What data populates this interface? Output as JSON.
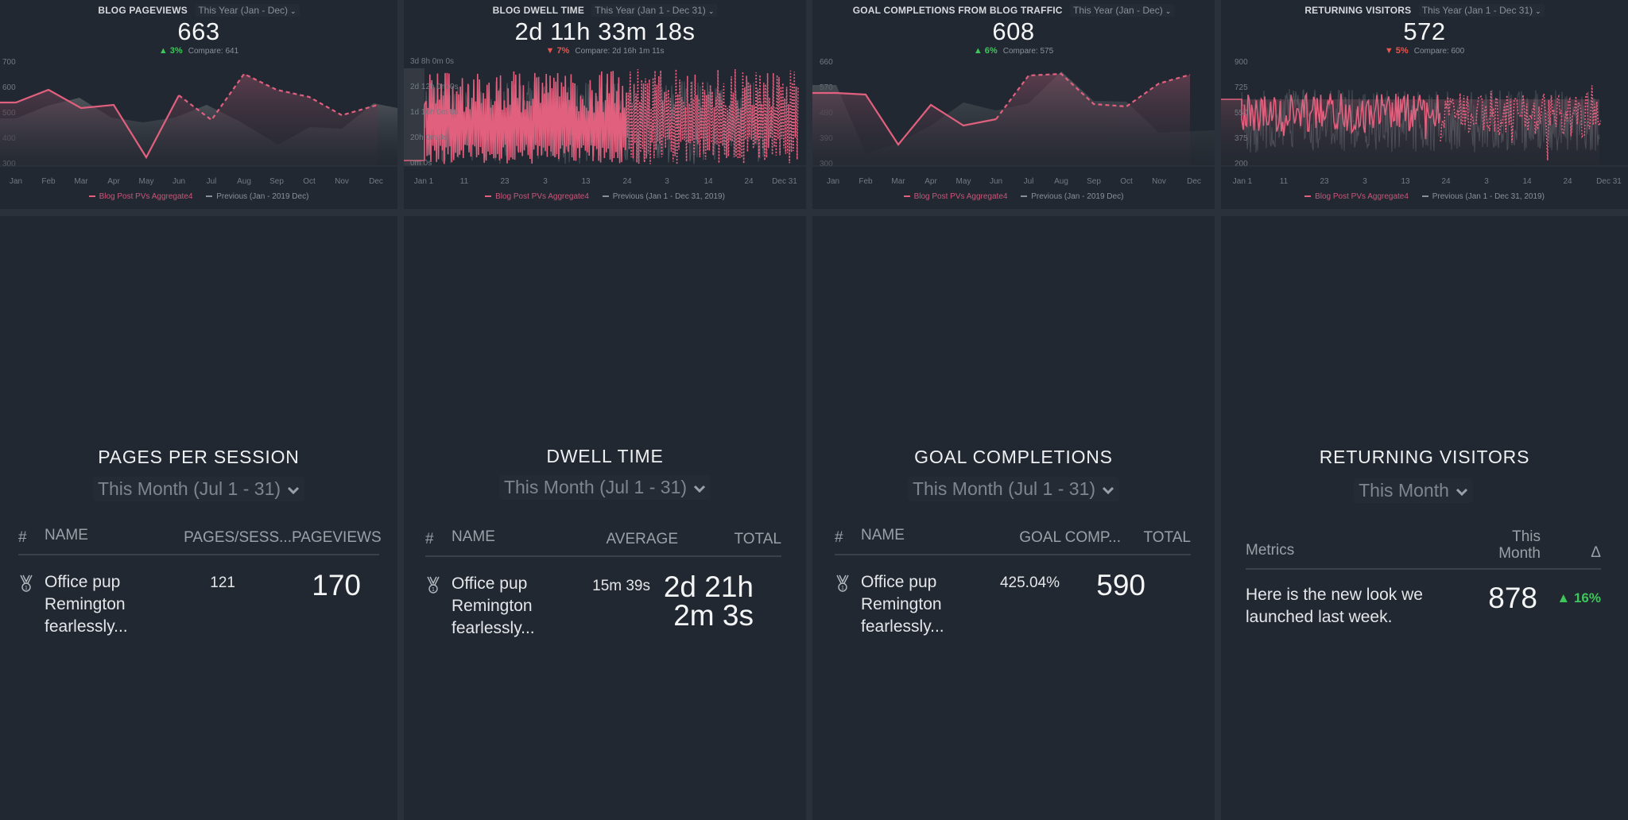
{
  "colors": {
    "background": "#2b313a",
    "panel": "#222831",
    "accent_pink": "#e0607e",
    "previous_grey": "#8a9099",
    "delta_up": "#3ec55b",
    "delta_down": "#e8554e"
  },
  "charts": [
    {
      "title": "BLOG PAGEVIEWS",
      "range": "This Year (Jan - Dec)",
      "value": "663",
      "delta_dir": "up",
      "delta_icon": "▲",
      "delta": "3%",
      "compare": "Compare: 641",
      "legend_current": "Blog Post PVs Aggregate4",
      "legend_previous": "Previous (Jan - 2019 Dec)"
    },
    {
      "title": "BLOG DWELL TIME",
      "range": "This Year (Jan 1 - Dec 31)",
      "value": "2d 11h 33m 18s",
      "delta_dir": "down",
      "delta_icon": "▼",
      "delta": "7%",
      "compare": "Compare: 2d 16h 1m 11s",
      "legend_current": "Blog Post PVs Aggregate4",
      "legend_previous": "Previous (Jan 1 - Dec 31, 2019)"
    },
    {
      "title": "GOAL COMPLETIONS FROM BLOG TRAFFIC",
      "range": "This Year (Jan - Dec)",
      "value": "608",
      "delta_dir": "up",
      "delta_icon": "▲",
      "delta": "6%",
      "compare": "Compare: 575",
      "legend_current": "Blog Post PVs Aggregate4",
      "legend_previous": "Previous (Jan - 2019 Dec)"
    },
    {
      "title": "RETURNING VISITORS",
      "range": "This Year (Jan 1 - Dec 31)",
      "value": "572",
      "delta_dir": "down",
      "delta_icon": "▼",
      "delta": "5%",
      "compare": "Compare: 600",
      "legend_current": "Blog Post PVs Aggregate4",
      "legend_previous": "Previous (Jan 1 - Dec 31, 2019)"
    }
  ],
  "chart_data": [
    {
      "type": "line",
      "title": "BLOG PAGEVIEWS",
      "categories": [
        "Jan",
        "Feb",
        "Mar",
        "Apr",
        "May",
        "Jun",
        "Jul",
        "Aug",
        "Sep",
        "Oct",
        "Nov",
        "Dec"
      ],
      "yticks": [
        "700",
        "600",
        "500",
        "400",
        "300"
      ],
      "ylim": [
        300,
        700
      ],
      "series": [
        {
          "name": "Blog Post PVs Aggregate4",
          "values": [
            500,
            590,
            505,
            520,
            335,
            565,
            470,
            655,
            590,
            560,
            490,
            535
          ],
          "dashed_from_index": 6
        },
        {
          "name": "Previous (Jan - 2019 Dec)",
          "values": [
            450,
            470,
            560,
            500,
            500,
            530,
            580,
            440,
            535,
            440,
            620,
            570
          ]
        }
      ]
    },
    {
      "type": "line",
      "title": "BLOG DWELL TIME",
      "xticks": [
        "Jan 1",
        "11",
        "23",
        "3",
        "13",
        "24",
        "3",
        "14",
        "24",
        "Dec 31"
      ],
      "yticks": [
        "3d 8h 0m 0s",
        "2d 12h 0m 0s",
        "1d 16h 0m 0s",
        "20h 0m 0s",
        "0m 0s"
      ],
      "series": [
        {
          "name": "Blog Post PVs Aggregate4",
          "values": "daily (dense, high-variance)"
        },
        {
          "name": "Previous (Jan 1 - Dec 31, 2019)",
          "values": "daily (dense)"
        }
      ]
    },
    {
      "type": "line",
      "title": "GOAL COMPLETIONS FROM BLOG TRAFFIC",
      "categories": [
        "Jan",
        "Feb",
        "Mar",
        "Apr",
        "May",
        "Jun",
        "Jul",
        "Aug",
        "Sep",
        "Oct",
        "Nov",
        "Dec"
      ],
      "yticks": [
        "660",
        "570",
        "480",
        "390",
        "300"
      ],
      "ylim": [
        300,
        660
      ],
      "series": [
        {
          "name": "Blog Post PVs Aggregate4",
          "values": [
            560,
            555,
            370,
            485,
            425,
            450,
            620,
            625,
            510,
            505,
            585,
            615
          ],
          "dashed_from_index": 5
        },
        {
          "name": "Previous (Jan - 2019 Dec)",
          "values": [
            575,
            340,
            380,
            440,
            505,
            480,
            500,
            640,
            530,
            525,
            405,
            410
          ]
        }
      ]
    },
    {
      "type": "line",
      "title": "RETURNING VISITORS",
      "xticks": [
        "Jan 1",
        "11",
        "23",
        "3",
        "13",
        "24",
        "3",
        "14",
        "24",
        "Dec 31"
      ],
      "yticks": [
        "900",
        "725",
        "550",
        "375",
        "200"
      ],
      "ylim": [
        200,
        900
      ],
      "series": [
        {
          "name": "Blog Post PVs Aggregate4",
          "values": "daily (dense, ~350-850)"
        },
        {
          "name": "Previous (Jan 1 - Dec 31, 2019)",
          "values": "daily (dense)"
        }
      ]
    }
  ],
  "tables": [
    {
      "title": "PAGES PER SESSION",
      "range": "This Month (Jul 1 - 31)",
      "headers": [
        "#",
        "NAME",
        "PAGES/SESS...",
        "PAGEVIEWS"
      ],
      "rows": [
        {
          "name": "Office pup Remington fearlessly...",
          "mid": "121",
          "end": "170"
        }
      ]
    },
    {
      "title": "DWELL TIME",
      "range": "This Month (Jul 1 - 31)",
      "headers": [
        "#",
        "NAME",
        "AVERAGE",
        "TOTAL"
      ],
      "rows": [
        {
          "name": "Office pup Remington fearlessly...",
          "mid": "15m 39s",
          "end_line1": "2d 21h",
          "end_line2": "2m 3s"
        }
      ]
    },
    {
      "title": "GOAL COMPLETIONS",
      "range": "This Month (Jul 1 - 31)",
      "headers": [
        "#",
        "NAME",
        "GOAL COMP...",
        "TOTAL"
      ],
      "rows": [
        {
          "name": "Office pup Remington fearlessly...",
          "mid": "425.04%",
          "end": "590"
        }
      ]
    },
    {
      "title": "RETURNING VISITORS",
      "range": "This Month",
      "headers": [
        "Metrics",
        "This Month",
        "Δ"
      ],
      "rows": [
        {
          "name": "Here is the new look we launched last week.",
          "value": "878",
          "delta_icon": "▲",
          "delta": "16%"
        }
      ]
    }
  ]
}
